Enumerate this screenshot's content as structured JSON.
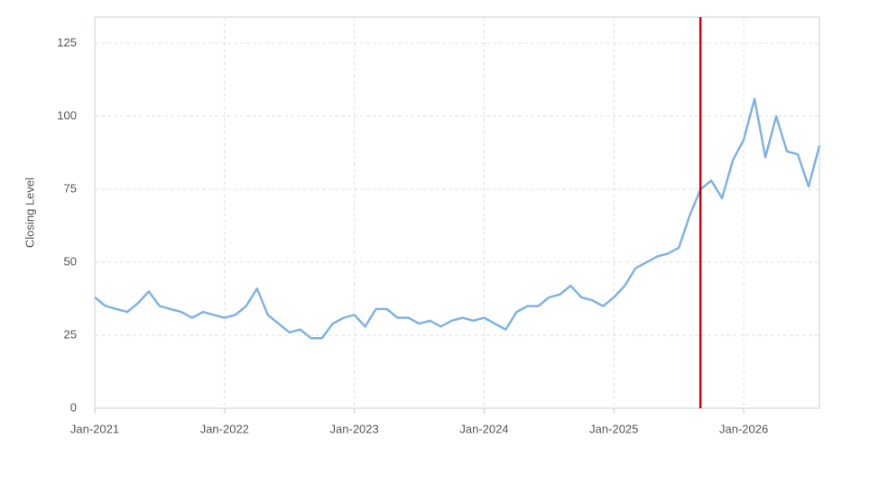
{
  "chart_data": {
    "type": "line",
    "y_label": "Closing Level",
    "x": [
      "2021-01",
      "2021-02",
      "2021-03",
      "2021-04",
      "2021-05",
      "2021-06",
      "2021-07",
      "2021-08",
      "2021-09",
      "2021-10",
      "2021-11",
      "2021-12",
      "2022-01",
      "2022-02",
      "2022-03",
      "2022-04",
      "2022-05",
      "2022-06",
      "2022-07",
      "2022-08",
      "2022-09",
      "2022-10",
      "2022-11",
      "2022-12",
      "2023-01",
      "2023-02",
      "2023-03",
      "2023-04",
      "2023-05",
      "2023-06",
      "2023-07",
      "2023-08",
      "2023-09",
      "2023-10",
      "2023-11",
      "2023-12",
      "2024-01",
      "2024-02",
      "2024-03",
      "2024-04",
      "2024-05",
      "2024-06",
      "2024-07",
      "2024-08",
      "2024-09",
      "2024-10",
      "2024-11",
      "2024-12",
      "2025-01",
      "2025-02",
      "2025-03",
      "2025-04",
      "2025-05",
      "2025-06",
      "2025-07",
      "2025-08",
      "2025-09",
      "2025-10",
      "2025-11",
      "2025-12",
      "2026-01",
      "2026-02",
      "2026-03",
      "2026-04",
      "2026-05",
      "2026-06",
      "2026-07",
      "2026-08"
    ],
    "values": [
      38,
      35,
      34,
      33,
      36,
      40,
      35,
      34,
      33,
      31,
      33,
      32,
      31,
      32,
      35,
      41,
      32,
      29,
      26,
      27,
      24,
      24,
      29,
      31,
      32,
      28,
      34,
      34,
      31,
      31,
      29,
      30,
      28,
      30,
      31,
      30,
      31,
      29,
      27,
      33,
      35,
      35,
      38,
      39,
      42,
      38,
      37,
      35,
      38,
      42,
      48,
      50,
      52,
      53,
      55,
      66,
      75,
      78,
      72,
      85,
      92,
      106,
      86,
      100,
      88,
      87,
      76,
      90
    ],
    "color": "#7eb3e6",
    "xlim": [
      "2021-01",
      "2026-08"
    ],
    "xticks": [
      {
        "value": "2021-01",
        "label": "Jan-2021"
      },
      {
        "value": "2022-01",
        "label": "Jan-2022"
      },
      {
        "value": "2023-01",
        "label": "Jan-2023"
      },
      {
        "value": "2024-01",
        "label": "Jan-2024"
      },
      {
        "value": "2025-01",
        "label": "Jan-2025"
      },
      {
        "value": "2026-01",
        "label": "Jan-2026"
      }
    ],
    "ylim": [
      0,
      134
    ],
    "yticks": [
      0,
      25,
      50,
      75,
      100,
      125
    ],
    "grid": true,
    "vline": {
      "x": "2025-09",
      "color": "#cc0000"
    }
  }
}
